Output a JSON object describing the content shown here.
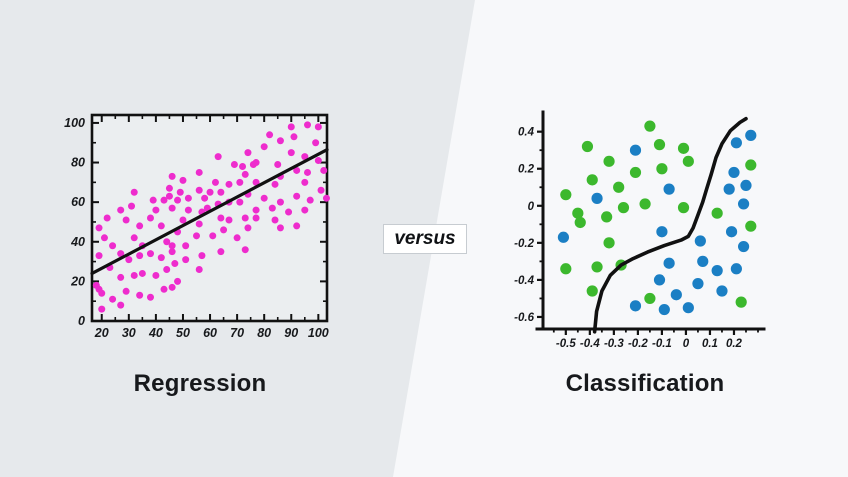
{
  "page": {
    "background_left": "#e6e9ec",
    "background_right": "#f7f8fa"
  },
  "versus": {
    "label": "versus"
  },
  "left_panel": {
    "caption": "Regression"
  },
  "right_panel": {
    "caption": "Classification"
  },
  "chart_data": [
    {
      "type": "scatter",
      "title": "Regression",
      "xlim": [
        16.4,
        103.2
      ],
      "ylim": [
        0,
        104
      ],
      "xticks": [
        "20",
        "30",
        "40",
        "50",
        "60",
        "70",
        "80",
        "90",
        "100"
      ],
      "yticks": [
        "0",
        "20",
        "40",
        "60",
        "80",
        "100"
      ],
      "x_minor_step": 5,
      "y_minor_step": 10,
      "grid": false,
      "frame": "box",
      "plot_bg": "#ebeef0",
      "point_color": "#ee2ccd",
      "line_color": "#111111",
      "trend_line": {
        "x1": 16.4,
        "y1": 24,
        "x2": 103.2,
        "y2": 86.5
      },
      "points": [
        [
          20,
          6
        ],
        [
          27,
          8
        ],
        [
          19,
          16
        ],
        [
          24,
          11
        ],
        [
          20,
          14
        ],
        [
          29,
          15
        ],
        [
          34,
          13
        ],
        [
          38,
          12
        ],
        [
          43,
          16
        ],
        [
          18,
          18
        ],
        [
          23,
          27
        ],
        [
          27,
          22
        ],
        [
          32,
          23
        ],
        [
          35,
          24
        ],
        [
          40,
          23
        ],
        [
          44,
          26
        ],
        [
          19,
          33
        ],
        [
          27,
          34
        ],
        [
          30,
          31
        ],
        [
          34,
          33
        ],
        [
          38,
          34
        ],
        [
          42,
          32
        ],
        [
          46,
          35
        ],
        [
          21,
          42
        ],
        [
          24,
          38
        ],
        [
          32,
          42
        ],
        [
          35,
          38
        ],
        [
          44,
          40
        ],
        [
          19,
          47
        ],
        [
          22,
          52
        ],
        [
          29,
          51
        ],
        [
          34,
          48
        ],
        [
          38,
          52
        ],
        [
          42,
          48
        ],
        [
          46,
          17
        ],
        [
          48,
          20
        ],
        [
          47,
          29
        ],
        [
          51,
          31
        ],
        [
          56,
          26
        ],
        [
          46,
          38
        ],
        [
          51,
          38
        ],
        [
          57,
          33
        ],
        [
          64,
          35
        ],
        [
          73,
          36
        ],
        [
          48,
          45
        ],
        [
          55,
          43
        ],
        [
          61,
          43
        ],
        [
          65,
          46
        ],
        [
          70,
          42
        ],
        [
          74,
          47
        ],
        [
          50,
          51
        ],
        [
          56,
          49
        ],
        [
          64,
          52
        ],
        [
          67,
          51
        ],
        [
          73,
          52
        ],
        [
          77,
          52
        ],
        [
          84,
          51
        ],
        [
          86,
          47
        ],
        [
          92,
          48
        ],
        [
          27,
          56
        ],
        [
          31,
          58
        ],
        [
          40,
          56
        ],
        [
          46,
          57
        ],
        [
          52,
          56
        ],
        [
          57,
          55
        ],
        [
          59,
          57
        ],
        [
          32,
          65
        ],
        [
          39,
          61
        ],
        [
          43,
          61
        ],
        [
          48,
          61
        ],
        [
          45,
          63
        ],
        [
          45,
          67
        ],
        [
          49,
          65
        ],
        [
          60,
          65
        ],
        [
          63,
          59
        ],
        [
          67,
          60
        ],
        [
          71,
          60
        ],
        [
          52,
          62
        ],
        [
          58,
          62
        ],
        [
          62,
          70
        ],
        [
          64,
          65
        ],
        [
          67,
          69
        ],
        [
          71,
          70
        ],
        [
          50,
          71
        ],
        [
          46,
          73
        ],
        [
          56,
          75
        ],
        [
          56,
          66
        ],
        [
          63,
          83
        ],
        [
          69,
          79
        ],
        [
          72,
          78
        ],
        [
          73,
          74
        ],
        [
          77,
          56
        ],
        [
          83,
          57
        ],
        [
          89,
          55
        ],
        [
          95,
          56
        ],
        [
          74,
          64
        ],
        [
          80,
          62
        ],
        [
          86,
          60
        ],
        [
          92,
          63
        ],
        [
          97,
          61
        ],
        [
          103,
          62
        ],
        [
          77,
          70
        ],
        [
          84,
          69
        ],
        [
          95,
          70
        ],
        [
          101,
          66
        ],
        [
          74,
          85
        ],
        [
          76,
          79
        ],
        [
          85,
          79
        ],
        [
          95,
          83
        ],
        [
          100,
          81
        ],
        [
          96,
          75
        ],
        [
          102,
          76
        ],
        [
          86,
          73
        ],
        [
          92,
          76
        ],
        [
          77,
          80
        ],
        [
          82,
          94
        ],
        [
          86,
          91
        ],
        [
          91,
          93
        ],
        [
          99,
          90
        ],
        [
          90,
          85
        ],
        [
          80,
          88
        ],
        [
          90,
          98
        ],
        [
          96,
          99
        ],
        [
          100,
          98
        ]
      ]
    },
    {
      "type": "scatter",
      "title": "Classification",
      "xlim": [
        -0.595,
        0.3
      ],
      "ylim": [
        -0.665,
        0.49
      ],
      "xticks": [
        "-0.5",
        "-0.4",
        "-0.3",
        "-0.2",
        "-0.1",
        "0",
        "0.1",
        "0.2"
      ],
      "yticks": [
        "0.4",
        "0.2",
        "0",
        "-0.2",
        "-0.4",
        "-0.6"
      ],
      "x_minor_step": 0.05,
      "y_minor_step": 0.1,
      "grid": false,
      "frame": "axes",
      "curve_color": "#111111",
      "series": [
        {
          "name": "class-green",
          "color": "#3cb82d",
          "points": [
            [
              -0.41,
              0.32
            ],
            [
              -0.32,
              0.24
            ],
            [
              -0.21,
              0.18
            ],
            [
              -0.39,
              0.14
            ],
            [
              -0.28,
              0.1
            ],
            [
              -0.5,
              0.06
            ],
            [
              -0.17,
              0.01
            ],
            [
              -0.26,
              -0.01
            ],
            [
              -0.45,
              -0.04
            ],
            [
              -0.33,
              -0.06
            ],
            [
              -0.15,
              0.43
            ],
            [
              -0.11,
              0.33
            ],
            [
              -0.01,
              0.31
            ],
            [
              0.01,
              0.24
            ],
            [
              -0.1,
              0.2
            ],
            [
              0.27,
              0.22
            ],
            [
              -0.01,
              -0.01
            ],
            [
              0.13,
              -0.04
            ],
            [
              -0.44,
              -0.09
            ],
            [
              -0.32,
              -0.2
            ],
            [
              -0.5,
              -0.34
            ],
            [
              -0.37,
              -0.33
            ],
            [
              -0.27,
              -0.32
            ],
            [
              -0.39,
              -0.46
            ],
            [
              -0.15,
              -0.5
            ],
            [
              0.27,
              -0.11
            ],
            [
              0.23,
              -0.52
            ]
          ]
        },
        {
          "name": "class-blue",
          "color": "#1b7fc4",
          "points": [
            [
              -0.21,
              0.3
            ],
            [
              -0.37,
              0.04
            ],
            [
              0.21,
              0.34
            ],
            [
              0.27,
              0.38
            ],
            [
              0.2,
              0.18
            ],
            [
              -0.07,
              0.09
            ],
            [
              0.18,
              0.09
            ],
            [
              0.25,
              0.11
            ],
            [
              0.24,
              0.01
            ],
            [
              -0.51,
              -0.17
            ],
            [
              -0.1,
              -0.14
            ],
            [
              0.19,
              -0.14
            ],
            [
              0.06,
              -0.19
            ],
            [
              0.24,
              -0.22
            ],
            [
              -0.07,
              -0.31
            ],
            [
              0.07,
              -0.3
            ],
            [
              0.13,
              -0.35
            ],
            [
              0.21,
              -0.34
            ],
            [
              -0.11,
              -0.4
            ],
            [
              0.05,
              -0.42
            ],
            [
              0.15,
              -0.46
            ],
            [
              -0.04,
              -0.48
            ],
            [
              -0.09,
              -0.56
            ],
            [
              0.01,
              -0.55
            ],
            [
              -0.21,
              -0.54
            ]
          ]
        }
      ],
      "boundary_curve": [
        [
          -0.38,
          -0.68
        ],
        [
          -0.372,
          -0.57
        ],
        [
          -0.35,
          -0.46
        ],
        [
          -0.315,
          -0.375
        ],
        [
          -0.27,
          -0.32
        ],
        [
          -0.22,
          -0.285
        ],
        [
          -0.16,
          -0.25
        ],
        [
          -0.09,
          -0.215
        ],
        [
          -0.02,
          -0.185
        ],
        [
          0.01,
          -0.165
        ],
        [
          0.03,
          -0.12
        ],
        [
          0.05,
          -0.05
        ],
        [
          0.07,
          0.02
        ],
        [
          0.086,
          0.09
        ],
        [
          0.105,
          0.17
        ],
        [
          0.125,
          0.26
        ],
        [
          0.15,
          0.335
        ],
        [
          0.185,
          0.405
        ],
        [
          0.225,
          0.45
        ],
        [
          0.25,
          0.47
        ]
      ]
    }
  ]
}
